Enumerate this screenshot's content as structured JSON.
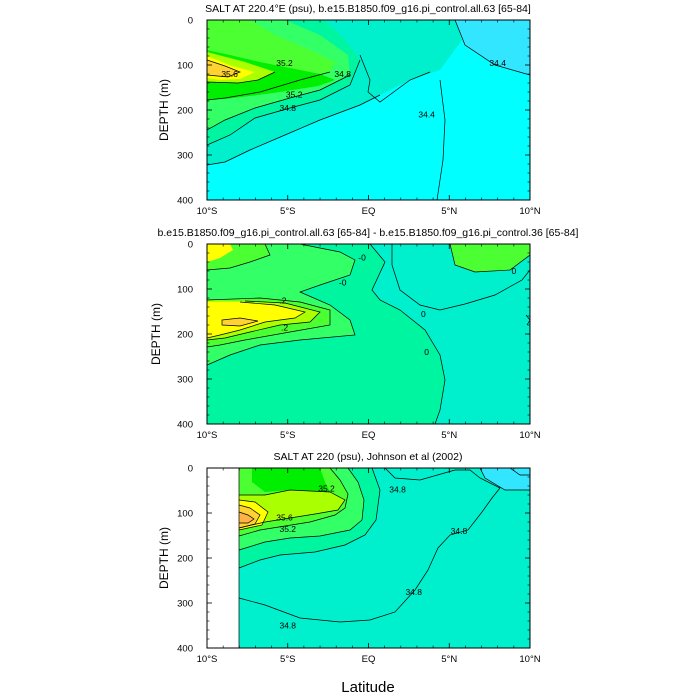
{
  "chart_data": [
    {
      "type": "heatmap",
      "subtype": "filled-contour",
      "title": "SALT AT 220.4°E (psu), b.e15.B1850.f09_g16.pi_control.all.63 [65-84]",
      "ylabel": "DEPTH (m)",
      "xlim": [
        -10,
        10
      ],
      "ylim": [
        400,
        0
      ],
      "xticks": [
        "10°S",
        "5°S",
        "EQ",
        "5°N",
        "10°N"
      ],
      "yticks": [
        "0",
        "100",
        "200",
        "300",
        "400"
      ],
      "contour_labels": [
        {
          "label": "35.2",
          "x": -5.2,
          "y": 95
        },
        {
          "label": "35.6",
          "x": -8.6,
          "y": 120
        },
        {
          "label": "35.2",
          "x": -4.6,
          "y": 165
        },
        {
          "label": "34.8",
          "x": -5.0,
          "y": 195
        },
        {
          "label": "34.8",
          "x": -1.6,
          "y": 120
        },
        {
          "label": "34.4",
          "x": 3.6,
          "y": 210
        },
        {
          "label": "34.4",
          "x": 8.0,
          "y": 95
        }
      ]
    },
    {
      "type": "heatmap",
      "subtype": "filled-contour",
      "title": "b.e15.B1850.f09_g16.pi_control.all.63 [65-84] - b.e15.B1850.f09_g16.pi_control.36 [65-84]",
      "ylabel": "DEPTH (m)",
      "xlim": [
        -10,
        10
      ],
      "ylim": [
        400,
        0
      ],
      "xticks": [
        "10°S",
        "5°S",
        "EQ",
        "5°N",
        "10°N"
      ],
      "yticks": [
        "0",
        "100",
        "200",
        "300",
        "400"
      ],
      "contour_labels": [
        {
          "label": ".2",
          "x": -5.3,
          "y": 125
        },
        {
          "label": ".2",
          "x": -5.2,
          "y": 185
        },
        {
          "label": "-0",
          "x": -0.4,
          "y": 30
        },
        {
          "label": "-0",
          "x": -1.6,
          "y": 85
        },
        {
          "label": "0",
          "x": 3.4,
          "y": 155
        },
        {
          "label": "0",
          "x": 3.6,
          "y": 240
        },
        {
          "label": "0",
          "x": 9.0,
          "y": 60
        }
      ]
    },
    {
      "type": "heatmap",
      "subtype": "filled-contour",
      "title": "SALT AT 220 (psu), Johnson et al (2002)",
      "ylabel": "DEPTH (m)",
      "xlabel": "Latitude",
      "xlim": [
        -10,
        10
      ],
      "ylim": [
        400,
        0
      ],
      "xticks": [
        "10°S",
        "5°S",
        "EQ",
        "5°N",
        "10°N"
      ],
      "yticks": [
        "0",
        "100",
        "200",
        "300",
        "400"
      ],
      "data_start_x": -8,
      "contour_labels": [
        {
          "label": "35.2",
          "x": -2.6,
          "y": 45
        },
        {
          "label": "35.6",
          "x": -5.2,
          "y": 110
        },
        {
          "label": "35.2",
          "x": -5.0,
          "y": 135
        },
        {
          "label": "34.8",
          "x": 1.8,
          "y": 48
        },
        {
          "label": "34.8",
          "x": 5.6,
          "y": 140
        },
        {
          "label": "34.8",
          "x": 2.8,
          "y": 275
        },
        {
          "label": "34.8",
          "x": -5.0,
          "y": 350
        }
      ]
    }
  ],
  "colors": {
    "cyan": "#00ffff",
    "cyan_dark": "#33e6ff",
    "aqua": "#00f0cd",
    "aqua_green": "#00f5a0",
    "green_light": "#33ff66",
    "green": "#4cff33",
    "green_bright": "#00ee00",
    "lime": "#aaff00",
    "yellow": "#ffff00",
    "gold": "#ffd233",
    "orange": "#ffb347"
  }
}
